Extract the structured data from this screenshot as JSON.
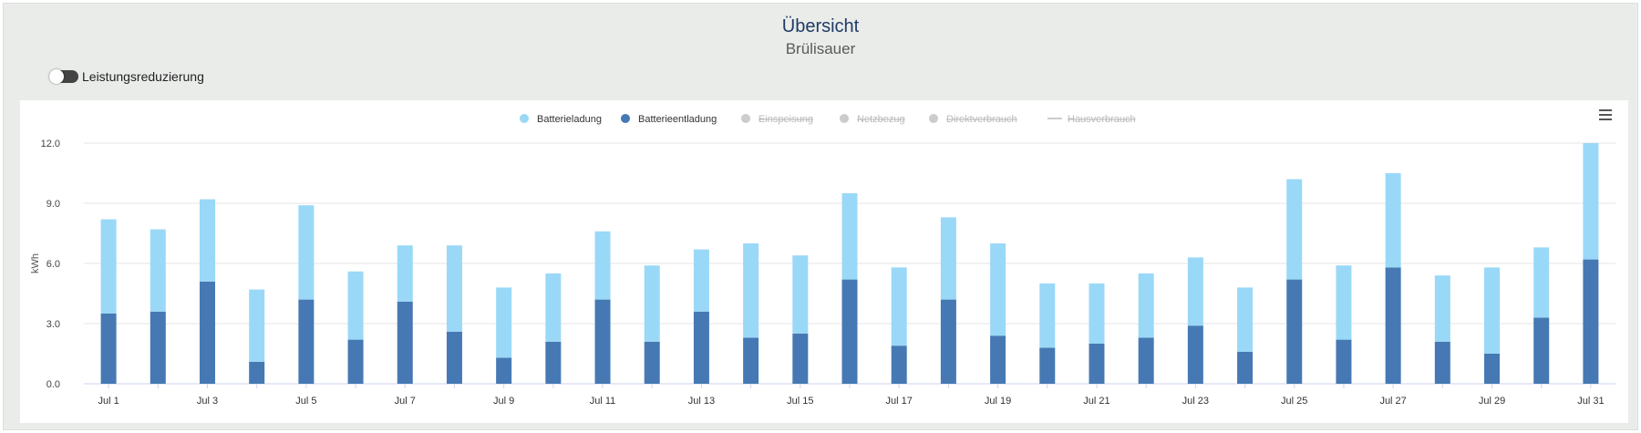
{
  "header": {
    "title": "Übersicht",
    "subtitle": "Brülisauer"
  },
  "toggle": {
    "label": "Leistungsreduzierung",
    "enabled": false
  },
  "chart_menu_icon": "hamburger-menu-icon",
  "colors": {
    "batterieladung": "#9ad8f7",
    "batterieentladung": "#4679b3",
    "legend_disabled": "#cccccc"
  },
  "chart_data": {
    "type": "bar",
    "stacked": true,
    "ylabel": "kWh",
    "ylim": [
      0,
      12
    ],
    "yticks": [
      "0.0",
      "3.0",
      "6.0",
      "9.0",
      "12.0"
    ],
    "grid": true,
    "legend_position": "top-center",
    "categories": [
      "Jul 1",
      "Jul 2",
      "Jul 3",
      "Jul 4",
      "Jul 5",
      "Jul 6",
      "Jul 7",
      "Jul 8",
      "Jul 9",
      "Jul 10",
      "Jul 11",
      "Jul 12",
      "Jul 13",
      "Jul 14",
      "Jul 15",
      "Jul 16",
      "Jul 17",
      "Jul 18",
      "Jul 19",
      "Jul 20",
      "Jul 21",
      "Jul 22",
      "Jul 23",
      "Jul 24",
      "Jul 25",
      "Jul 26",
      "Jul 27",
      "Jul 28",
      "Jul 29",
      "Jul 30",
      "Jul 31"
    ],
    "xtick_labels": [
      "Jul 1",
      "",
      "Jul 3",
      "",
      "Jul 5",
      "",
      "Jul 7",
      "",
      "Jul 9",
      "",
      "Jul 11",
      "",
      "Jul 13",
      "",
      "Jul 15",
      "",
      "Jul 17",
      "",
      "Jul 19",
      "",
      "Jul 21",
      "",
      "Jul 23",
      "",
      "Jul 25",
      "",
      "Jul 27",
      "",
      "Jul 29",
      "",
      "Jul 31"
    ],
    "legend": [
      {
        "name": "Batterieladung",
        "symbol": "dot",
        "active": true
      },
      {
        "name": "Batterieentladung",
        "symbol": "dot",
        "active": true
      },
      {
        "name": "Einspeisung",
        "symbol": "dot",
        "active": false
      },
      {
        "name": "Netzbezug",
        "symbol": "dot",
        "active": false
      },
      {
        "name": "Direktverbrauch",
        "symbol": "dot",
        "active": false
      },
      {
        "name": "Hausverbrauch",
        "symbol": "line",
        "active": false
      }
    ],
    "series": [
      {
        "name": "Batterieentladung",
        "values": [
          3.5,
          3.6,
          5.1,
          1.1,
          4.2,
          2.2,
          4.1,
          2.6,
          1.3,
          2.1,
          4.2,
          2.1,
          3.6,
          2.3,
          2.5,
          5.2,
          1.9,
          4.2,
          2.4,
          1.8,
          2.0,
          2.3,
          2.9,
          1.6,
          5.2,
          2.2,
          5.8,
          2.1,
          1.5,
          3.3,
          6.2
        ]
      },
      {
        "name": "Batterieladung",
        "values": [
          4.7,
          4.1,
          4.1,
          3.6,
          4.7,
          3.4,
          2.8,
          4.3,
          3.5,
          3.4,
          3.4,
          3.8,
          3.1,
          4.7,
          3.9,
          4.3,
          3.9,
          4.1,
          4.6,
          3.2,
          3.0,
          3.2,
          3.4,
          3.2,
          5.0,
          3.7,
          4.7,
          3.3,
          4.3,
          3.5,
          5.8
        ]
      }
    ]
  }
}
